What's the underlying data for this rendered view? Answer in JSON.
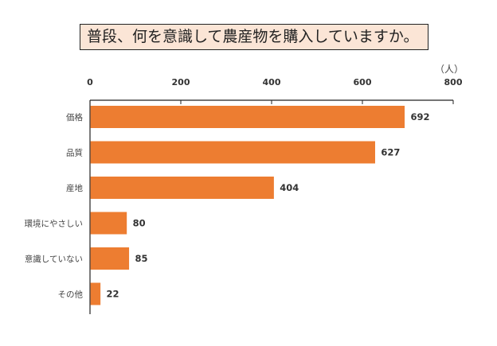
{
  "chart_data": {
    "type": "bar",
    "orientation": "horizontal",
    "title": "普段、何を意識して農産物を購入していますか。",
    "unit": "（人）",
    "categories": [
      "価格",
      "品質",
      "産地",
      "環境にやさしい",
      "意識していない",
      "その他"
    ],
    "values": [
      692,
      627,
      404,
      80,
      85,
      22
    ],
    "xlim": [
      0,
      800
    ],
    "xticks": [
      0,
      200,
      400,
      600,
      800
    ],
    "axis_position": "top",
    "grid": false,
    "bar_color": "#ED7D31",
    "title_background": "#FBE5D6"
  }
}
